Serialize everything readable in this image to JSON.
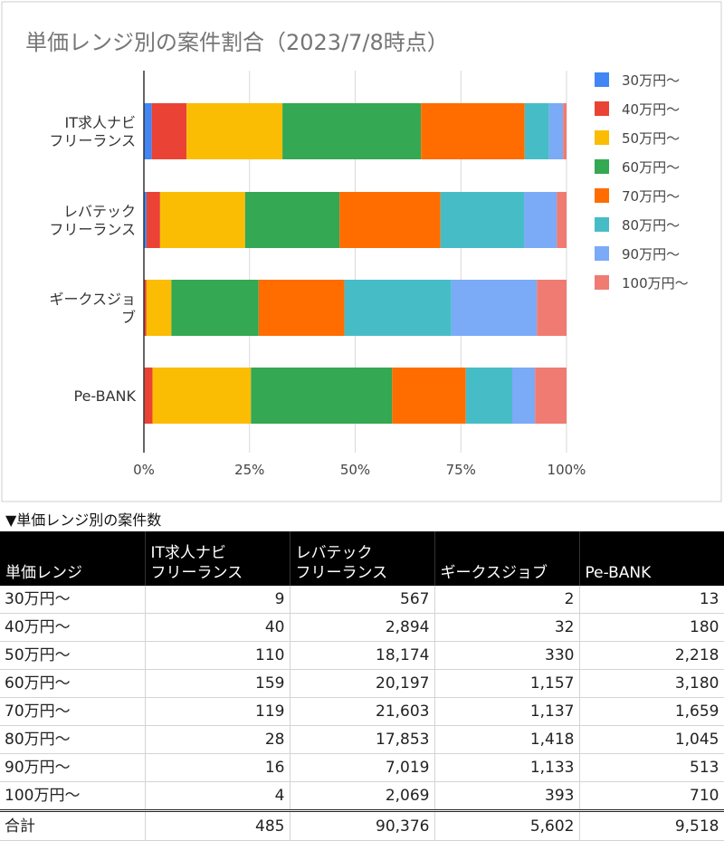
{
  "chart_data": {
    "type": "bar",
    "orientation": "horizontal",
    "stacked": "percent",
    "title": "単価レンジ別の案件割合（2023/7/8時点）",
    "categories": [
      "IT求人ナビ\nフリーランス",
      "レバテック\nフリーランス",
      "ギークスジョ\nブ",
      "Pe-BANK"
    ],
    "series": [
      {
        "name": "30万円〜",
        "color": "#4285f4",
        "values": [
          9,
          567,
          2,
          13
        ]
      },
      {
        "name": "40万円〜",
        "color": "#ea4335",
        "values": [
          40,
          2894,
          32,
          180
        ]
      },
      {
        "name": "50万円〜",
        "color": "#fbbc04",
        "values": [
          110,
          18174,
          330,
          2218
        ]
      },
      {
        "name": "60万円〜",
        "color": "#34a853",
        "values": [
          159,
          20197,
          1157,
          3180
        ]
      },
      {
        "name": "70万円〜",
        "color": "#ff6d01",
        "values": [
          119,
          21603,
          1137,
          1659
        ]
      },
      {
        "name": "80万円〜",
        "color": "#46bdc6",
        "values": [
          28,
          17853,
          1418,
          1045
        ]
      },
      {
        "name": "90万円〜",
        "color": "#7baaf7",
        "values": [
          16,
          7019,
          1133,
          513
        ]
      },
      {
        "name": "100万円〜",
        "color": "#f07b72",
        "values": [
          4,
          2069,
          393,
          710
        ]
      }
    ],
    "x_ticks": [
      "0%",
      "25%",
      "50%",
      "75%",
      "100%"
    ],
    "xlim": [
      0,
      100
    ],
    "grid": true,
    "legend": "right"
  },
  "table": {
    "caption": "▼単価レンジ別の案件数",
    "headers": [
      "単価レンジ",
      "IT求人ナビ\nフリーランス",
      "レバテック\nフリーランス",
      "ギークスジョブ",
      "Pe-BANK"
    ],
    "rows": [
      [
        "30万円〜",
        "9",
        "567",
        "2",
        "13"
      ],
      [
        "40万円〜",
        "40",
        "2,894",
        "32",
        "180"
      ],
      [
        "50万円〜",
        "110",
        "18,174",
        "330",
        "2,218"
      ],
      [
        "60万円〜",
        "159",
        "20,197",
        "1,157",
        "3,180"
      ],
      [
        "70万円〜",
        "119",
        "21,603",
        "1,137",
        "1,659"
      ],
      [
        "80万円〜",
        "28",
        "17,853",
        "1,418",
        "1,045"
      ],
      [
        "90万円〜",
        "16",
        "7,019",
        "1,133",
        "513"
      ],
      [
        "100万円〜",
        "4",
        "2,069",
        "393",
        "710"
      ]
    ],
    "total": [
      "合計",
      "485",
      "90,376",
      "5,602",
      "9,518"
    ]
  }
}
